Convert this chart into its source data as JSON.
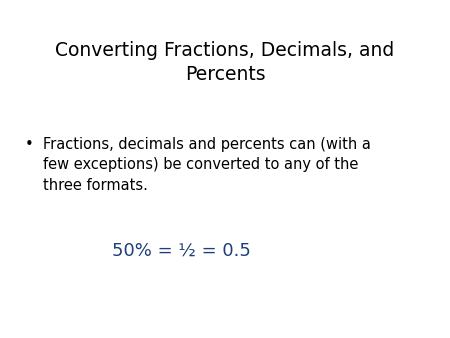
{
  "title_line1": "Converting Fractions, Decimals, and",
  "title_line2": "Percents",
  "title_color": "#000000",
  "title_fontsize": 13.5,
  "bullet_text_line1": "Fractions, decimals and percents can (with a",
  "bullet_text_line2": "few exceptions) be converted to any of the",
  "bullet_text_line3": "three formats.",
  "bullet_color": "#000000",
  "bullet_fontsize": 10.5,
  "formula_text": "50% = ½ = 0.5",
  "formula_color": "#1f3f7a",
  "formula_fontsize": 13,
  "background_color": "#ffffff",
  "bullet_char": "•",
  "fig_width": 4.5,
  "fig_height": 3.38,
  "dpi": 100
}
